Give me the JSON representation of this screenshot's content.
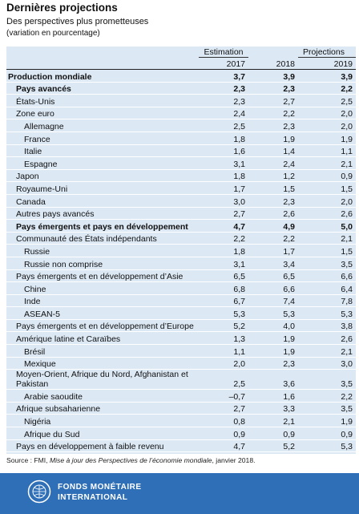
{
  "header": {
    "title": "Dernières projections",
    "subtitle": "Des perspectives plus prometteuses",
    "unit": "(variation en pourcentage)"
  },
  "table": {
    "groups": [
      "Estimation",
      "Projections"
    ],
    "years": [
      "2017",
      "2018",
      "2019"
    ],
    "rows": [
      [
        "Production mondiale",
        "3,7",
        "3,9",
        "3,9"
      ],
      [
        "Pays avancés",
        "2,3",
        "2,3",
        "2,2"
      ],
      [
        "États-Unis",
        "2,3",
        "2,7",
        "2,5"
      ],
      [
        "Zone euro",
        "2,4",
        "2,2",
        "2,0"
      ],
      [
        "Allemagne",
        "2,5",
        "2,3",
        "2,0"
      ],
      [
        "France",
        "1,8",
        "1,9",
        "1,9"
      ],
      [
        "Italie",
        "1,6",
        "1,4",
        "1,1"
      ],
      [
        "Espagne",
        "3,1",
        "2,4",
        "2,1"
      ],
      [
        "Japon",
        "1,8",
        "1,2",
        "0,9"
      ],
      [
        "Royaume-Uni",
        "1,7",
        "1,5",
        "1,5"
      ],
      [
        "Canada",
        "3,0",
        "2,3",
        "2,0"
      ],
      [
        "Autres pays avancés",
        "2,7",
        "2,6",
        "2,6"
      ],
      [
        "Pays émergents et pays en développement",
        "4,7",
        "4,9",
        "5,0"
      ],
      [
        "Communauté des États indépendants",
        "2,2",
        "2,2",
        "2,1"
      ],
      [
        "Russie",
        "1,8",
        "1,7",
        "1,5"
      ],
      [
        "Russie non comprise",
        "3,1",
        "3,4",
        "3,5"
      ],
      [
        "Pays émergents et en développement d’Asie",
        "6,5",
        "6,5",
        "6,6"
      ],
      [
        "Chine",
        "6,8",
        "6,6",
        "6,4"
      ],
      [
        "Inde",
        "6,7",
        "7,4",
        "7,8"
      ],
      [
        "ASEAN-5",
        "5,3",
        "5,3",
        "5,3"
      ],
      [
        "Pays émergents et en développement d’Europe",
        "5,2",
        "4,0",
        "3,8"
      ],
      [
        "Amérique latine et Caraïbes",
        "1,3",
        "1,9",
        "2,6"
      ],
      [
        "Brésil",
        "1,1",
        "1,9",
        "2,1"
      ],
      [
        "Mexique",
        "2,0",
        "2,3",
        "3,0"
      ],
      [
        "Moyen-Orient, Afrique du Nord, Afghanistan et Pakistan",
        "2,5",
        "3,6",
        "3,5"
      ],
      [
        "Arabie saoudite",
        "–0,7",
        "1,6",
        "2,2"
      ],
      [
        "Afrique subsaharienne",
        "2,7",
        "3,3",
        "3,5"
      ],
      [
        "Nigéria",
        "0,8",
        "2,1",
        "1,9"
      ],
      [
        "Afrique du Sud",
        "0,9",
        "0,9",
        "0,9"
      ],
      [
        "Pays en développement à faible revenu",
        "4,7",
        "5,2",
        "5,3"
      ]
    ]
  },
  "source": {
    "prefix": "Source : FMI, ",
    "publication": "Mise à jour des Perspectives de l’économie mondiale",
    "suffix": ", janvier 2018."
  },
  "footer": {
    "line1": "FONDS MONÉTAIRE",
    "line2": "INTERNATIONAL"
  }
}
